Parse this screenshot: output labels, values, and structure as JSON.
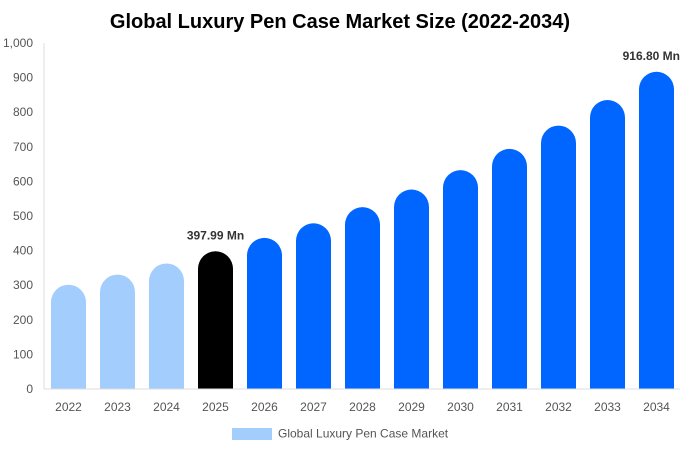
{
  "chart_data": {
    "type": "bar",
    "title": "Global Luxury Pen Case Market Size (2022-2034)",
    "xlabel": "",
    "ylabel": "",
    "categories": [
      "2022",
      "2023",
      "2024",
      "2025",
      "2026",
      "2027",
      "2028",
      "2029",
      "2030",
      "2031",
      "2032",
      "2033",
      "2034"
    ],
    "series": [
      {
        "name": "Global Luxury Pen Case Market",
        "values": [
          301.4,
          330.7,
          362.8,
          397.99,
          436.6,
          479.0,
          525.5,
          576.5,
          632.5,
          693.9,
          761.3,
          835.2,
          916.8
        ]
      }
    ],
    "ylim": [
      0,
      1000
    ],
    "yticks": [
      0,
      100,
      200,
      300,
      400,
      500,
      600,
      700,
      800,
      900,
      1000
    ],
    "ytick_labels": [
      "0",
      "100",
      "200",
      "300",
      "400",
      "500",
      "600",
      "700",
      "800",
      "900",
      "1,000"
    ],
    "data_labels": [
      {
        "category": "2025",
        "text": "397.99 Mn"
      },
      {
        "category": "2034",
        "text": "916.80 Mn"
      }
    ],
    "grid": false,
    "legend_position": "bottom",
    "colors": {
      "historical": "#a2cdfd",
      "current": "#000000",
      "forecast": "#0066ff",
      "legend": "#a2cdfd"
    }
  }
}
